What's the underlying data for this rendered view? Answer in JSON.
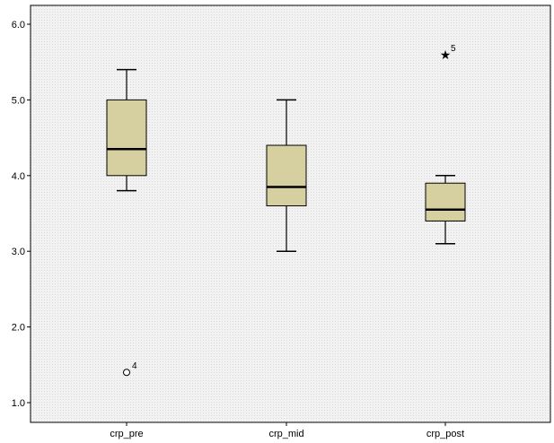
{
  "chart_data": {
    "type": "boxplot",
    "title": "",
    "xlabel": "",
    "ylabel": "",
    "ylim": [
      0.9,
      6.2
    ],
    "y_ticks": [
      1.0,
      2.0,
      3.0,
      4.0,
      5.0,
      6.0
    ],
    "y_tick_labels": [
      "1.0",
      "2.0",
      "3.0",
      "4.0",
      "5.0",
      "6.0"
    ],
    "grid": false,
    "categories": [
      "crp_pre",
      "crp_mid",
      "crp_post"
    ],
    "boxes": [
      {
        "category": "crp_pre",
        "whisker_low": 3.8,
        "q1": 4.0,
        "median": 4.35,
        "q3": 5.0,
        "whisker_high": 5.4,
        "outliers": [
          {
            "value": 1.4,
            "label": "4",
            "marker": "circle"
          }
        ]
      },
      {
        "category": "crp_mid",
        "whisker_low": 3.0,
        "q1": 3.6,
        "median": 3.85,
        "q3": 4.4,
        "whisker_high": 5.0,
        "outliers": []
      },
      {
        "category": "crp_post",
        "whisker_low": 3.1,
        "q1": 3.4,
        "median": 3.55,
        "q3": 3.9,
        "whisker_high": 4.0,
        "outliers": [
          {
            "value": 5.6,
            "label": "5",
            "marker": "star"
          }
        ]
      }
    ],
    "colors": {
      "box_fill": "#d6d0a0",
      "plot_background": "#f0f0f0",
      "line": "#000000"
    }
  }
}
